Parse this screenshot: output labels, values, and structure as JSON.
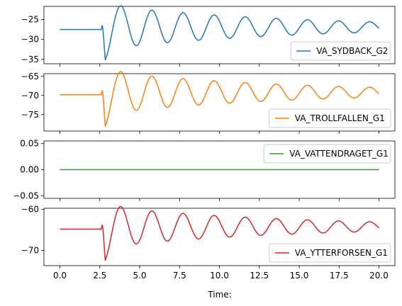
{
  "chart_data": [
    {
      "type": "line",
      "series": [
        {
          "name": "VA_SYDBACK_G2",
          "color": "#1f77b4"
        }
      ],
      "ylim": [
        -36.1,
        -21.7
      ],
      "yticks": [
        -25,
        -30,
        -35
      ],
      "ytick_labels": [
        "−25",
        "−30",
        "−35"
      ],
      "xlim": [
        -1.0,
        21.0
      ],
      "signal": {
        "pre": -27.5,
        "dip": -35.5,
        "amp": 5.0,
        "period": 1.95,
        "decay": 0.085,
        "dip_at": 2.85
      },
      "legend": "lower-right"
    },
    {
      "type": "line",
      "series": [
        {
          "name": "VA_TROLLFALLEN_G1",
          "color": "#ff7f0e"
        }
      ],
      "ylim": [
        -79.3,
        -64.3
      ],
      "yticks": [
        -65,
        -70,
        -75
      ],
      "ytick_labels": [
        "−65",
        "−70",
        "−75"
      ],
      "xlim": [
        -1.0,
        21.0
      ],
      "signal": {
        "pre": -69.8,
        "dip": -78.5,
        "amp": 5.0,
        "period": 1.95,
        "decay": 0.085,
        "dip_at": 2.85
      },
      "legend": "lower-right"
    },
    {
      "type": "line",
      "series": [
        {
          "name": "VA_VATTENDRAGET_G1",
          "color": "#2ca02c"
        }
      ],
      "ylim": [
        -0.055,
        0.055
      ],
      "yticks": [
        0.05,
        0.0,
        -0.05
      ],
      "ytick_labels": [
        "0.05",
        "0.00",
        "−0.05"
      ],
      "xlim": [
        -1.0,
        21.0
      ],
      "signal": {
        "pre": 0.0,
        "dip": 0.0,
        "amp": 0.0,
        "period": 1.95,
        "decay": 0.085,
        "dip_at": 2.85
      },
      "legend": "upper-right"
    },
    {
      "type": "line",
      "series": [
        {
          "name": "VA_YTTERFORSEN_G1",
          "color": "#d62728"
        }
      ],
      "ylim": [
        -73.7,
        -59.7
      ],
      "yticks": [
        -60,
        -70
      ],
      "ytick_labels": [
        "−60",
        "−70"
      ],
      "xlim": [
        -1.0,
        21.0
      ],
      "signal": {
        "pre": -64.8,
        "dip": -72.8,
        "amp": 4.5,
        "period": 1.95,
        "decay": 0.085,
        "dip_at": 2.85
      },
      "legend": "lower-right"
    }
  ],
  "xticks": [
    0.0,
    2.5,
    5.0,
    7.5,
    10.0,
    12.5,
    15.0,
    17.5,
    20.0
  ],
  "xtick_labels": [
    "0.0",
    "2.5",
    "5.0",
    "7.5",
    "10.0",
    "12.5",
    "15.0",
    "17.5",
    "20.0"
  ],
  "xlabel": "Time:",
  "x_range": [
    0.0,
    20.0
  ]
}
